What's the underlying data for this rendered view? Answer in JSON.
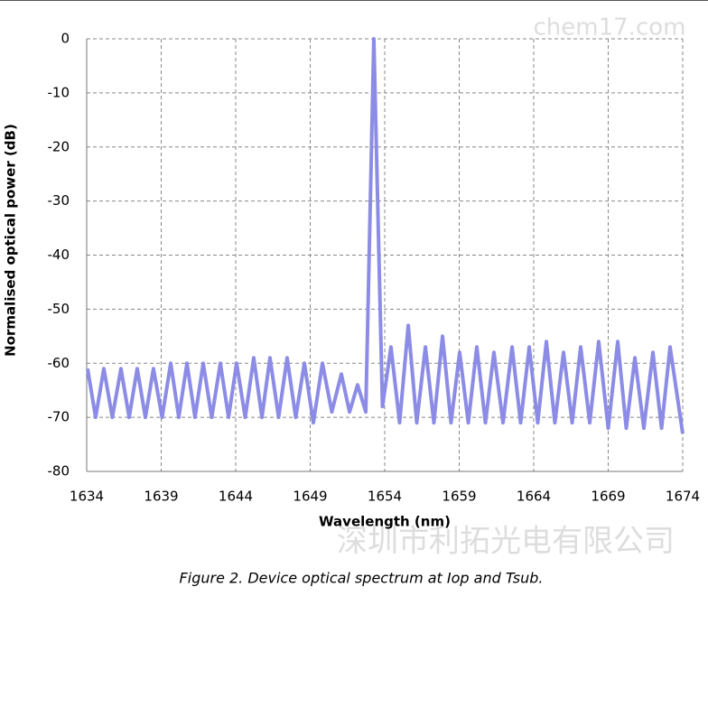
{
  "chart_data": {
    "type": "line",
    "watermark_top": "chem17.com",
    "watermark_bottom": "深圳市利拓光电有限公司",
    "caption": "Figure 2. Device optical spectrum at Iop and Tsub.",
    "x_label": "Wavelength (nm)",
    "y_label": "Normalised optical power  (dB)",
    "xlim": [
      1634,
      1674
    ],
    "xticks": [
      1634,
      1639,
      1644,
      1649,
      1654,
      1659,
      1664,
      1669,
      1674
    ],
    "ylim": [
      -80,
      0
    ],
    "yticks": [
      0,
      -10,
      -20,
      -30,
      -40,
      -50,
      -60,
      -70,
      -80
    ],
    "grid": true,
    "color": "#8c8ce6",
    "x": [
      1634.06,
      1634.6,
      1635.15,
      1635.72,
      1636.3,
      1636.85,
      1637.39,
      1637.94,
      1638.48,
      1639.06,
      1639.64,
      1640.18,
      1640.73,
      1641.27,
      1641.82,
      1642.39,
      1642.97,
      1643.52,
      1644.06,
      1644.64,
      1645.21,
      1645.76,
      1646.3,
      1646.88,
      1647.45,
      1648.03,
      1648.61,
      1649.21,
      1649.82,
      1650.45,
      1651.09,
      1651.64,
      1652.18,
      1652.73,
      1653.27,
      1653.85,
      1654.42,
      1655.0,
      1655.58,
      1656.15,
      1656.73,
      1657.3,
      1657.88,
      1658.45,
      1659.03,
      1659.61,
      1660.18,
      1660.76,
      1661.33,
      1661.94,
      1662.55,
      1663.12,
      1663.7,
      1664.27,
      1664.85,
      1665.42,
      1666.0,
      1666.58,
      1667.15,
      1667.76,
      1668.36,
      1669.0,
      1669.64,
      1670.21,
      1670.79,
      1671.39,
      1672.0,
      1672.58,
      1673.15,
      1674.0
    ],
    "values": [
      -61,
      -70,
      -61,
      -70,
      -61,
      -70,
      -61,
      -70,
      -61,
      -70,
      -60,
      -70,
      -60,
      -70,
      -60,
      -70,
      -60,
      -70,
      -60,
      -70,
      -59,
      -70,
      -59,
      -70,
      -59,
      -70,
      -60,
      -71,
      -60,
      -69,
      -62,
      -69,
      -64,
      -69,
      0,
      -68,
      -57,
      -71,
      -53,
      -71,
      -57,
      -71,
      -55,
      -71,
      -58,
      -71,
      -57,
      -71,
      -58,
      -71,
      -57,
      -71,
      -57,
      -71,
      -56,
      -71,
      -58,
      -71,
      -57,
      -71,
      -56,
      -72,
      -56,
      -72,
      -59,
      -72,
      -58,
      -72,
      -57,
      -73
    ]
  }
}
